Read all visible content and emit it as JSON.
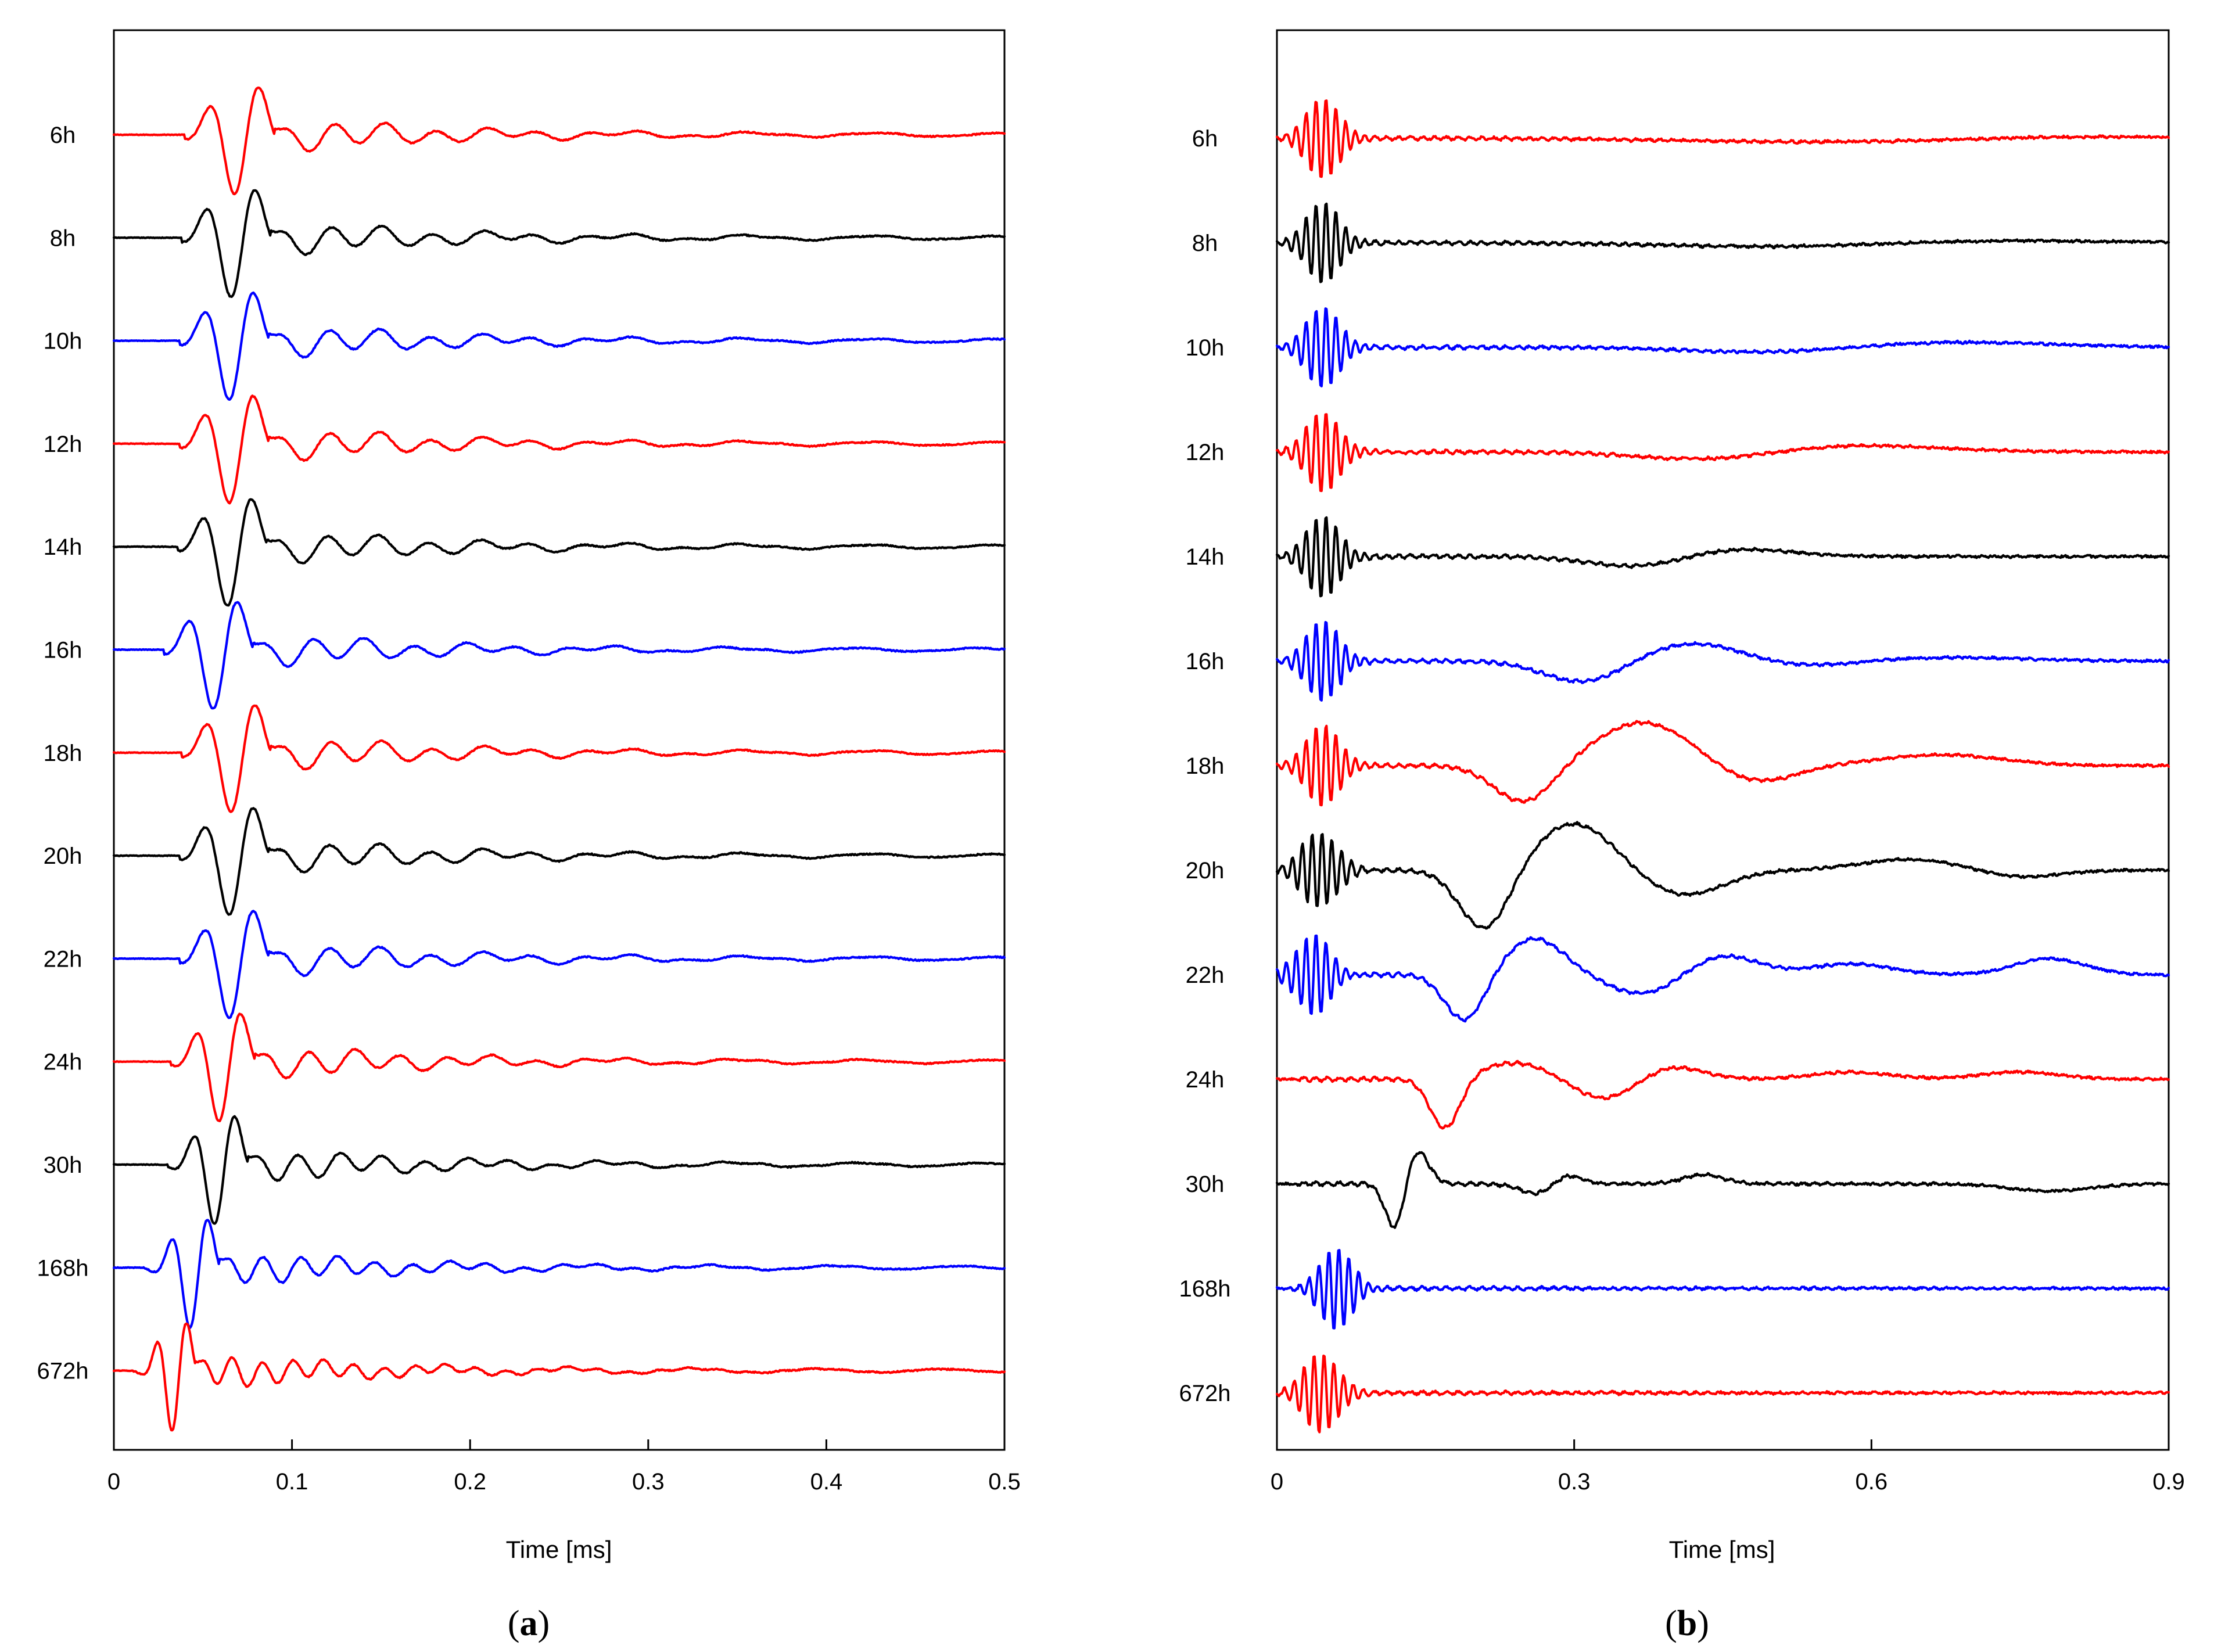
{
  "chart_data": [
    {
      "id": "a",
      "type": "line",
      "subtype": "stacked waveforms",
      "panel_label": "a",
      "xlabel": "Time [ms]",
      "ylabel": "",
      "xlim": [
        0,
        0.5
      ],
      "xticks": [
        0,
        0.1,
        0.2,
        0.3,
        0.4,
        0.5
      ],
      "xtick_labels": [
        "0",
        "0.1",
        "0.2",
        "0.3",
        "0.4",
        "0.5"
      ],
      "grid": false,
      "series": [
        {
          "name": "6h",
          "color": "#ff0000",
          "arrival_ms": 0.06,
          "period_ms": 0.03,
          "amplitude": 1.0
        },
        {
          "name": "8h",
          "color": "#000000",
          "arrival_ms": 0.058,
          "period_ms": 0.03,
          "amplitude": 1.0
        },
        {
          "name": "10h",
          "color": "#0000ff",
          "arrival_ms": 0.057,
          "period_ms": 0.03,
          "amplitude": 1.0
        },
        {
          "name": "12h",
          "color": "#ff0000",
          "arrival_ms": 0.057,
          "period_ms": 0.03,
          "amplitude": 1.0
        },
        {
          "name": "14h",
          "color": "#000000",
          "arrival_ms": 0.056,
          "period_ms": 0.03,
          "amplitude": 1.0
        },
        {
          "name": "16h",
          "color": "#0000ff",
          "arrival_ms": 0.048,
          "period_ms": 0.03,
          "amplitude": 1.0
        },
        {
          "name": "18h",
          "color": "#ff0000",
          "arrival_ms": 0.058,
          "period_ms": 0.03,
          "amplitude": 1.0
        },
        {
          "name": "20h",
          "color": "#000000",
          "arrival_ms": 0.057,
          "period_ms": 0.03,
          "amplitude": 1.0
        },
        {
          "name": "22h",
          "color": "#0000ff",
          "arrival_ms": 0.057,
          "period_ms": 0.03,
          "amplitude": 1.0
        },
        {
          "name": "24h",
          "color": "#ff0000",
          "arrival_ms": 0.052,
          "period_ms": 0.027,
          "amplitude": 1.0
        },
        {
          "name": "30h",
          "color": "#000000",
          "arrival_ms": 0.05,
          "period_ms": 0.025,
          "amplitude": 1.0
        },
        {
          "name": "168h",
          "color": "#0000ff",
          "arrival_ms": 0.037,
          "period_ms": 0.022,
          "amplitude": 1.0
        },
        {
          "name": "672h",
          "color": "#ff0000",
          "arrival_ms": 0.028,
          "period_ms": 0.018,
          "amplitude": 1.0
        }
      ]
    },
    {
      "id": "b",
      "type": "line",
      "subtype": "stacked waveforms",
      "panel_label": "b",
      "xlabel": "Time [ms]",
      "ylabel": "",
      "xlim": [
        0,
        0.9
      ],
      "xticks": [
        0,
        0.3,
        0.6,
        0.9
      ],
      "xtick_labels": [
        "0",
        "0.3",
        "0.6",
        "0.9"
      ],
      "grid": false,
      "series": [
        {
          "name": "6h",
          "color": "#ff0000",
          "burst_ms": 0.047,
          "slow_events": [
            [
              0.55,
              -0.1,
              0.15
            ],
            [
              0.8,
              0.06,
              0.1
            ]
          ]
        },
        {
          "name": "8h",
          "color": "#000000",
          "burst_ms": 0.047,
          "slow_events": [
            [
              0.52,
              -0.12,
              0.12
            ],
            [
              0.7,
              0.08,
              0.12
            ]
          ]
        },
        {
          "name": "10h",
          "color": "#0000ff",
          "burst_ms": 0.047,
          "slow_events": [
            [
              0.5,
              -0.15,
              0.08
            ],
            [
              0.68,
              0.15,
              0.1
            ]
          ]
        },
        {
          "name": "12h",
          "color": "#ff0000",
          "burst_ms": 0.047,
          "slow_events": [
            [
              0.44,
              -0.25,
              0.07
            ],
            [
              0.57,
              0.2,
              0.09
            ]
          ]
        },
        {
          "name": "14h",
          "color": "#000000",
          "burst_ms": 0.047,
          "slow_events": [
            [
              0.37,
              -0.35,
              0.05
            ],
            [
              0.45,
              0.25,
              0.06
            ]
          ]
        },
        {
          "name": "16h",
          "color": "#0000ff",
          "burst_ms": 0.047,
          "slow_events": [
            [
              0.31,
              -0.6,
              0.04
            ],
            [
              0.42,
              0.5,
              0.05
            ],
            [
              0.53,
              -0.15,
              0.05
            ],
            [
              0.68,
              0.1,
              0.07
            ]
          ]
        },
        {
          "name": "18h",
          "color": "#ff0000",
          "burst_ms": 0.047,
          "slow_events": [
            [
              0.25,
              -1.05,
              0.03
            ],
            [
              0.37,
              1.2,
              0.05
            ],
            [
              0.48,
              -0.5,
              0.04
            ],
            [
              0.67,
              0.3,
              0.06
            ]
          ]
        },
        {
          "name": "20h",
          "color": "#000000",
          "burst_ms": 0.043,
          "slow_events": [
            [
              0.21,
              -1.7,
              0.025
            ],
            [
              0.3,
              1.3,
              0.04
            ],
            [
              0.41,
              -0.7,
              0.04
            ],
            [
              0.64,
              0.3,
              0.05
            ],
            [
              0.75,
              -0.2,
              0.04
            ]
          ]
        },
        {
          "name": "22h",
          "color": "#0000ff",
          "burst_ms": 0.037,
          "slow_events": [
            [
              0.19,
              -1.3,
              0.02
            ],
            [
              0.26,
              1.0,
              0.03
            ],
            [
              0.37,
              -0.55,
              0.035
            ],
            [
              0.45,
              0.55,
              0.035
            ],
            [
              0.58,
              0.3,
              0.04
            ],
            [
              0.78,
              0.45,
              0.035
            ]
          ]
        },
        {
          "name": "24h",
          "color": "#ff0000",
          "burst_ms": 0.0,
          "slow_events": [
            [
              0.17,
              -1.4,
              0.015
            ],
            [
              0.24,
              0.45,
              0.035
            ],
            [
              0.33,
              -0.55,
              0.03
            ],
            [
              0.4,
              0.35,
              0.03
            ],
            [
              0.58,
              0.2,
              0.04
            ],
            [
              0.75,
              0.2,
              0.04
            ]
          ]
        },
        {
          "name": "30h",
          "color": "#000000",
          "burst_ms": 0.0,
          "slow_events": [
            [
              0.12,
              -1.4,
              0.01
            ],
            [
              0.14,
              1.0,
              0.012
            ],
            [
              0.27,
              -0.35,
              0.02
            ],
            [
              0.29,
              0.4,
              0.015
            ],
            [
              0.43,
              0.25,
              0.02
            ],
            [
              0.78,
              -0.2,
              0.04
            ]
          ]
        },
        {
          "name": "168h",
          "color": "#0000ff",
          "burst_ms": 0.06,
          "slow_events": []
        },
        {
          "name": "672h",
          "color": "#ff0000",
          "burst_ms": 0.045,
          "slow_events": []
        }
      ]
    }
  ],
  "captions": {
    "a": {
      "open": "(",
      "letter": "a",
      "close": ")"
    },
    "b": {
      "open": "(",
      "letter": "b",
      "close": ")"
    }
  }
}
